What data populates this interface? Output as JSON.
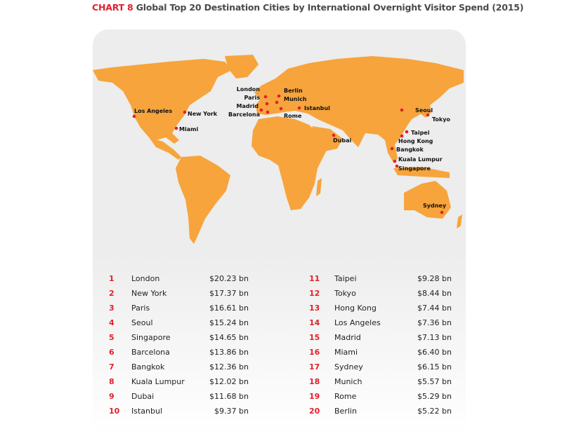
{
  "title": {
    "label": "CHART 8",
    "text": "Global Top 20 Destination Cities by International Overnight Visitor Spend (2015)"
  },
  "colors": {
    "land": "#f7a43c",
    "marker": "#e2202c",
    "accent": "#e2202c",
    "panel": "#ecedec"
  },
  "chart_data": {
    "type": "table",
    "title": "Global Top 20 Destination Cities by International Overnight Visitor Spend (2015)",
    "rows": [
      {
        "rank": "1",
        "city": "London",
        "spend": "$20.23 bn"
      },
      {
        "rank": "2",
        "city": "New York",
        "spend": "$17.37 bn"
      },
      {
        "rank": "3",
        "city": "Paris",
        "spend": "$16.61 bn"
      },
      {
        "rank": "4",
        "city": "Seoul",
        "spend": "$15.24 bn"
      },
      {
        "rank": "5",
        "city": "Singapore",
        "spend": "$14.65 bn"
      },
      {
        "rank": "6",
        "city": "Barcelona",
        "spend": "$13.86 bn"
      },
      {
        "rank": "7",
        "city": "Bangkok",
        "spend": "$12.36 bn"
      },
      {
        "rank": "8",
        "city": "Kuala Lumpur",
        "spend": "$12.02 bn"
      },
      {
        "rank": "9",
        "city": "Dubai",
        "spend": "$11.68 bn"
      },
      {
        "rank": "10",
        "city": "Istanbul",
        "spend": "$9.37 bn"
      },
      {
        "rank": "11",
        "city": "Taipei",
        "spend": "$9.28 bn"
      },
      {
        "rank": "12",
        "city": "Tokyo",
        "spend": "$8.44 bn"
      },
      {
        "rank": "13",
        "city": "Hong Kong",
        "spend": "$7.44 bn"
      },
      {
        "rank": "14",
        "city": "Los Angeles",
        "spend": "$7.36 bn"
      },
      {
        "rank": "15",
        "city": "Madrid",
        "spend": "$7.13 bn"
      },
      {
        "rank": "16",
        "city": "Miami",
        "spend": "$6.40 bn"
      },
      {
        "rank": "17",
        "city": "Sydney",
        "spend": "$6.15 bn"
      },
      {
        "rank": "18",
        "city": "Munich",
        "spend": "$5.57 bn"
      },
      {
        "rank": "19",
        "city": "Rome",
        "spend": "$5.29 bn"
      },
      {
        "rank": "20",
        "city": "Berlin",
        "spend": "$5.22 bn"
      }
    ],
    "map_cities": [
      "London",
      "Berlin",
      "Paris",
      "Munich",
      "Madrid",
      "Barcelona",
      "Rome",
      "Istanbul",
      "Los Angeles",
      "New York",
      "Miami",
      "Dubai",
      "Seoul",
      "Tokyo",
      "Taipei",
      "Hong Kong",
      "Bangkok",
      "Kuala Lumpur",
      "Singapore",
      "Sydney"
    ]
  }
}
